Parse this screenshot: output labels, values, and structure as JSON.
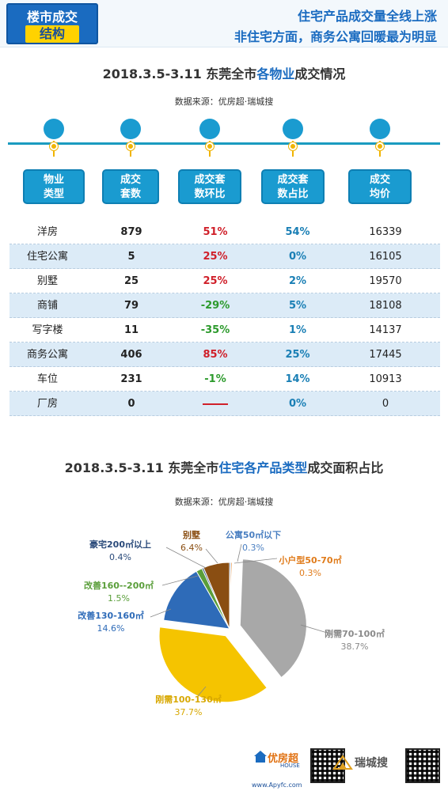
{
  "header": {
    "badge_line1": "楼市成交",
    "badge_line2": "结构",
    "headline1": "住宅产品成交量全线上涨",
    "headline2": "非住宅方面，商务公寓回暖最为明显"
  },
  "section1": {
    "title_prefix": "2018.3.5-3.11  东莞全市",
    "title_highlight": "各物业",
    "title_suffix": "成交情况",
    "source": "数据来源：优房超·瑞城搜"
  },
  "table": {
    "headers": [
      {
        "line1": "物业",
        "line2": "类型"
      },
      {
        "line1": "成交",
        "line2": "套数"
      },
      {
        "line1": "成交套",
        "line2": "数环比"
      },
      {
        "line1": "成交套",
        "line2": "数占比"
      },
      {
        "line1": "成交",
        "line2": "均价"
      }
    ],
    "rows": [
      {
        "type": "洋房",
        "units": "879",
        "mom": "51%",
        "trend": "up",
        "share": "54%",
        "price": "16339"
      },
      {
        "type": "住宅公寓",
        "units": "5",
        "mom": "25%",
        "trend": "up",
        "share": "0%",
        "price": "16105"
      },
      {
        "type": "别墅",
        "units": "25",
        "mom": "25%",
        "trend": "up",
        "share": "2%",
        "price": "19570"
      },
      {
        "type": "商铺",
        "units": "79",
        "mom": "-29%",
        "trend": "down",
        "share": "5%",
        "price": "18108"
      },
      {
        "type": "写字楼",
        "units": "11",
        "mom": "-35%",
        "trend": "down",
        "share": "1%",
        "price": "14137"
      },
      {
        "type": "商务公寓",
        "units": "406",
        "mom": "85%",
        "trend": "up",
        "share": "25%",
        "price": "17445"
      },
      {
        "type": "车位",
        "units": "231",
        "mom": "-1%",
        "trend": "down",
        "share": "14%",
        "price": "10913"
      },
      {
        "type": "厂房",
        "units": "0",
        "mom": "",
        "trend": "none",
        "share": "0%",
        "price": "0"
      }
    ],
    "colors": {
      "up": "#d0202a",
      "down": "#2c9a2c",
      "share": "#1a7fb5"
    }
  },
  "section2": {
    "title_prefix": "2018.3.5-3.11  东莞全市",
    "title_highlight": "住宅各产品类型",
    "title_suffix": "成交面积占比",
    "source": "数据来源：优房超·瑞城搜"
  },
  "chart_data": {
    "type": "pie",
    "title": "2018.3.5-3.11  东莞全市住宅各产品类型成交面积占比",
    "slices": [
      {
        "name": "公寓50㎡以下",
        "value": 0.3,
        "label": "0.3%",
        "color": "#4a7fc1"
      },
      {
        "name": "小户型50-70㎡",
        "value": 0.3,
        "label": "0.3%",
        "color": "#e07b1a"
      },
      {
        "name": "刚需70-100㎡",
        "value": 38.7,
        "label": "38.7%",
        "color": "#a8a8a8"
      },
      {
        "name": "刚需100-130㎡",
        "value": 37.7,
        "label": "37.7%",
        "color": "#f5c400"
      },
      {
        "name": "改善130-160㎡",
        "value": 14.6,
        "label": "14.6%",
        "color": "#2e6bb8"
      },
      {
        "name": "改善160--200㎡",
        "value": 1.5,
        "label": "1.5%",
        "color": "#5a9e3a"
      },
      {
        "name": "豪宅200㎡以上",
        "value": 0.4,
        "label": "0.4%",
        "color": "#2a4a7a"
      },
      {
        "name": "别墅",
        "value": 6.4,
        "label": "6.4%",
        "color": "#8a4e12"
      }
    ],
    "label_colors": {
      "公寓50㎡以下": "#4a7fc1",
      "小户型50-70㎡": "#e07b1a",
      "刚需70-100㎡": "#8a8a8a",
      "刚需100-130㎡": "#d8a800",
      "改善130-160㎡": "#2e6bb8",
      "改善160--200㎡": "#5a9e3a",
      "豪宅200㎡以上": "#2a4a7a",
      "别墅": "#8a4e12"
    }
  },
  "footer": {
    "logo1": "优房超",
    "logo1_sub": "HOUSE",
    "url": "www.Apyfc.com",
    "logo2": "瑞城搜"
  }
}
